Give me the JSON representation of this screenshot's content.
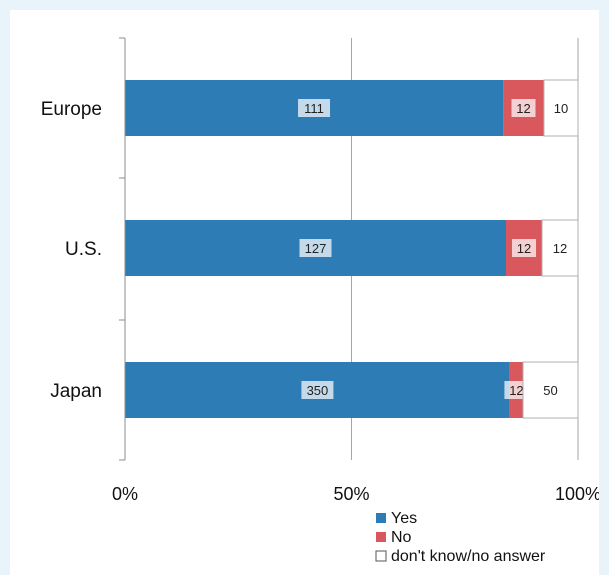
{
  "chart_data": {
    "type": "bar",
    "orientation": "horizontal",
    "stacked": "100%",
    "categories": [
      "Europe",
      "U.S.",
      "Japan"
    ],
    "series": [
      {
        "name": "Yes",
        "values": [
          111,
          127,
          350
        ],
        "color": "#2e7cb6"
      },
      {
        "name": "No",
        "values": [
          12,
          12,
          12
        ],
        "color": "#d9585e"
      },
      {
        "name": "don't know/no answer",
        "values": [
          10,
          12,
          50
        ],
        "color": "#ffffff"
      }
    ],
    "xlim": [
      0,
      100
    ],
    "x_ticks": [
      "0%",
      "50%",
      "100%"
    ],
    "grid": "vertical",
    "legend_position": "bottom"
  }
}
